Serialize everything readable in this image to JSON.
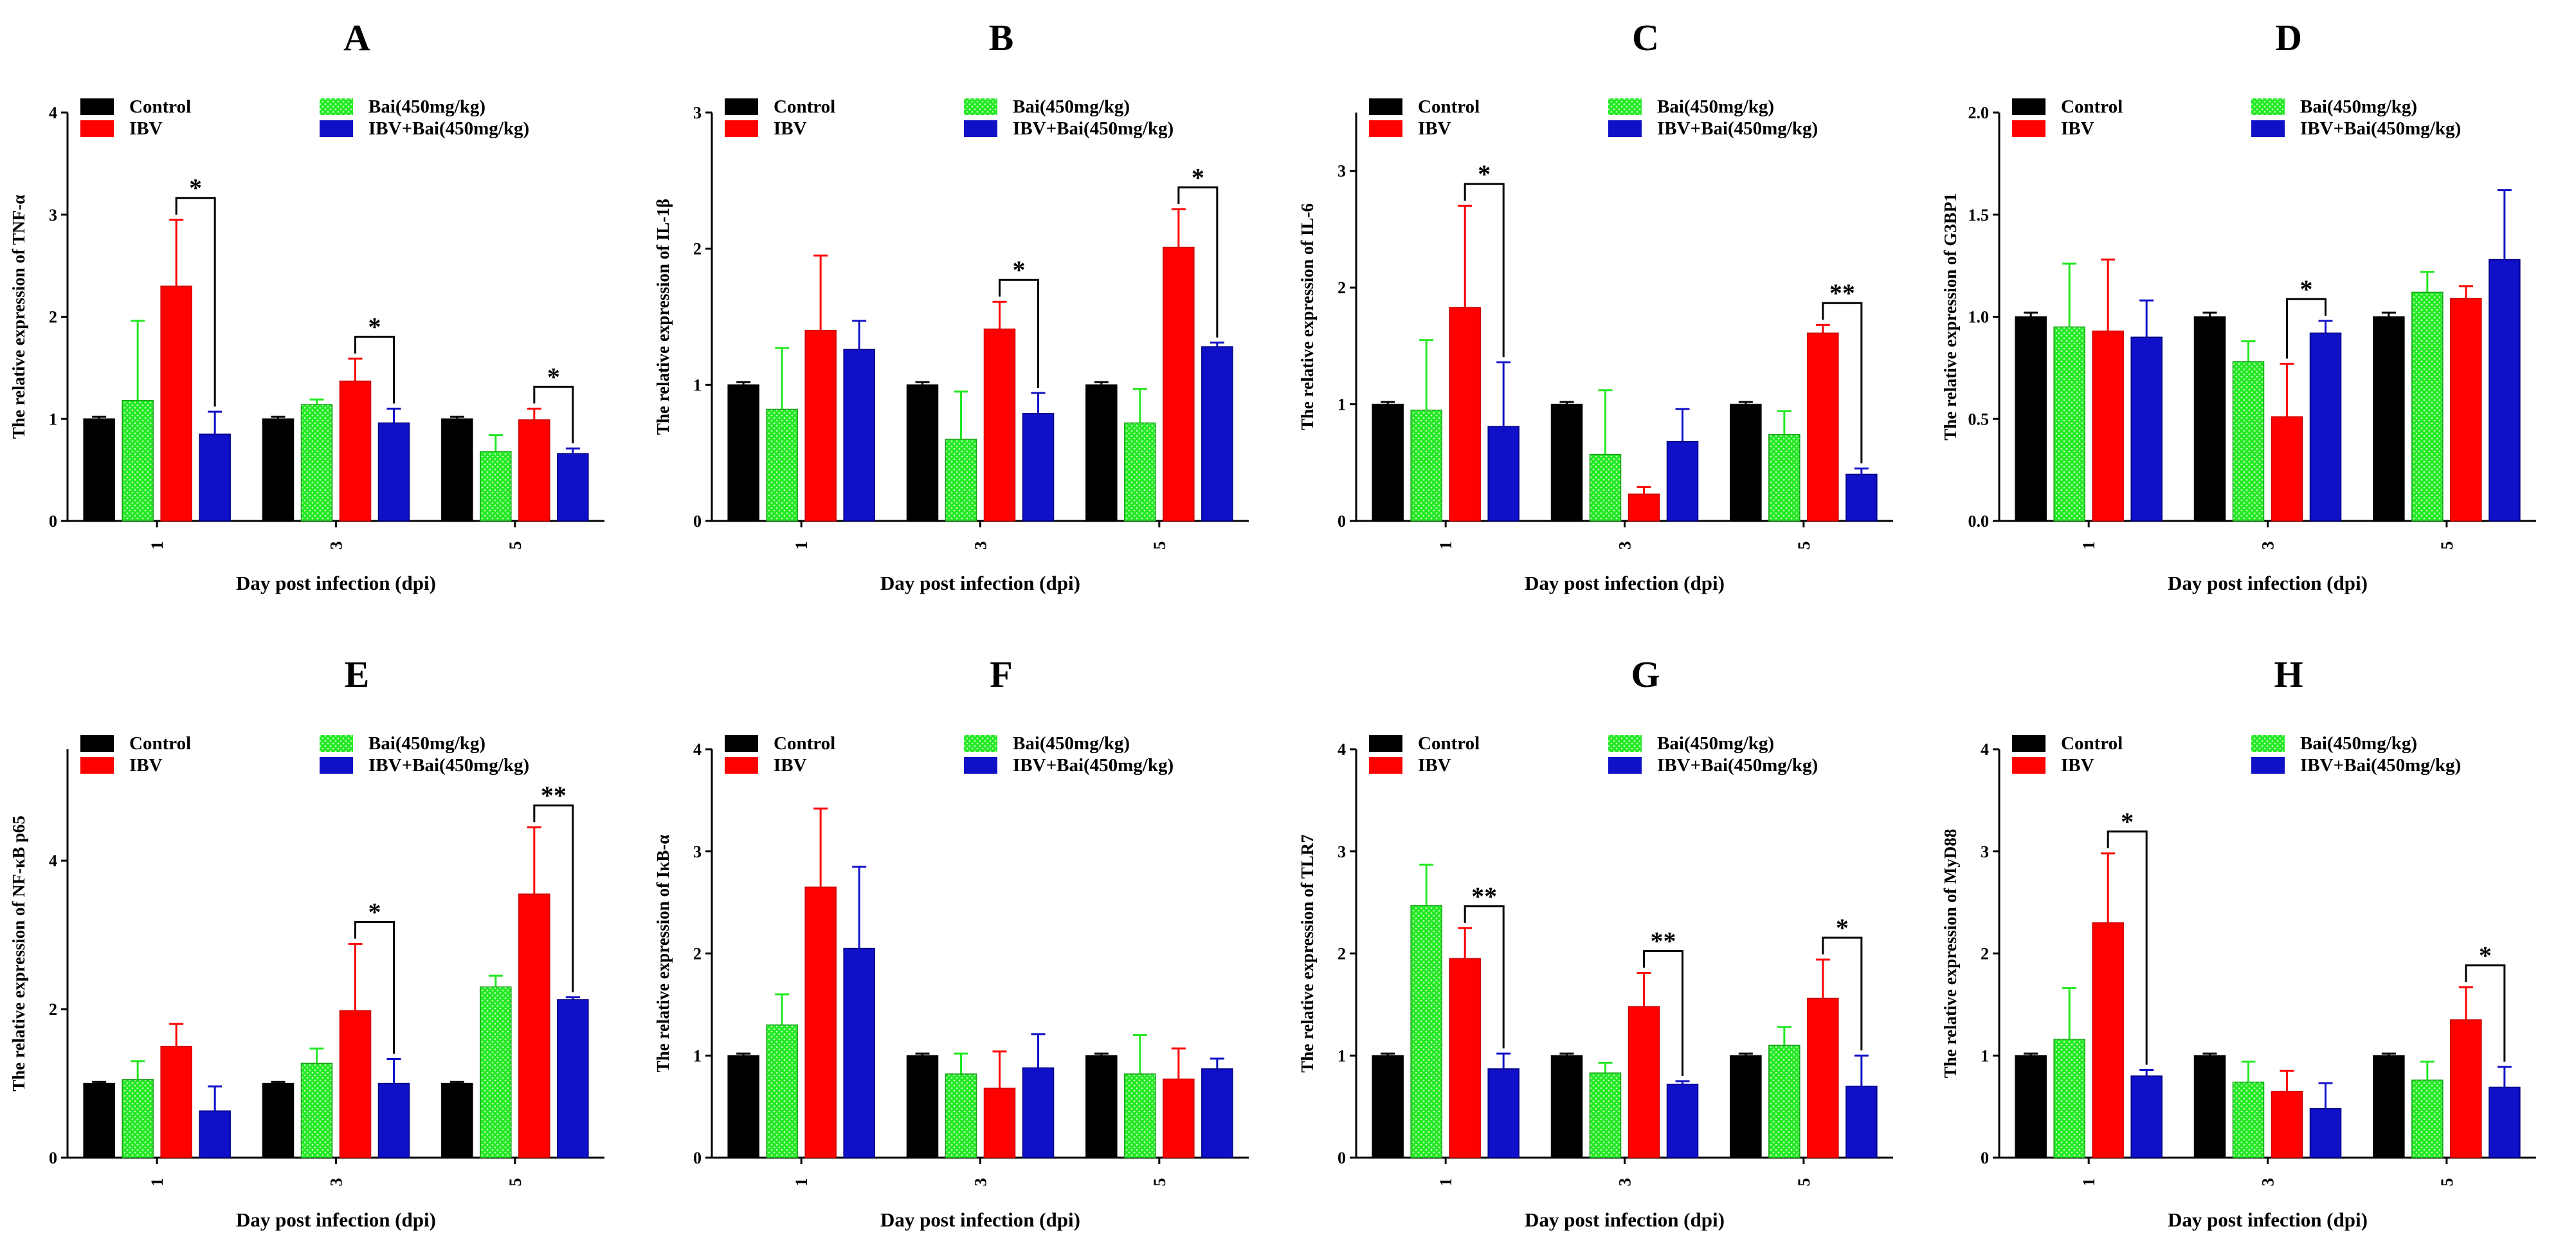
{
  "legend": [
    "Control",
    "IBV",
    "Bai(450mg/kg)",
    "IBV+Bai(450mg/kg)"
  ],
  "colors": {
    "Control": "#000000",
    "Bai(450mg/kg)": "#22e822",
    "IBV": "#ff0000",
    "IBV+Bai(450mg/kg)": "#1010c8"
  },
  "chart_data": [
    {
      "panel": "A",
      "type": "bar",
      "title": "A",
      "ylabel": "The relative expression of TNF-α",
      "xlabel": "Day post infection (dpi)",
      "categories": [
        "1",
        "3",
        "5"
      ],
      "ylim": [
        0,
        4
      ],
      "yticks": [
        0,
        1,
        2,
        3,
        4
      ],
      "series": [
        {
          "name": "Control",
          "values": [
            1.0,
            1.0,
            1.0
          ],
          "errors": [
            0.02,
            0.02,
            0.02
          ]
        },
        {
          "name": "Bai(450mg/kg)",
          "values": [
            1.18,
            1.14,
            0.68
          ],
          "errors": [
            0.78,
            0.05,
            0.16
          ]
        },
        {
          "name": "IBV",
          "values": [
            2.3,
            1.37,
            0.99
          ],
          "errors": [
            0.65,
            0.22,
            0.11
          ]
        },
        {
          "name": "IBV+Bai(450mg/kg)",
          "values": [
            0.85,
            0.96,
            0.66
          ],
          "errors": [
            0.22,
            0.14,
            0.05
          ]
        }
      ],
      "significance": [
        {
          "category": "1",
          "label": "*"
        },
        {
          "category": "3",
          "label": "*"
        },
        {
          "category": "5",
          "label": "*"
        }
      ]
    },
    {
      "panel": "B",
      "type": "bar",
      "title": "B",
      "ylabel": "The relative expression of IL-1β",
      "xlabel": "Day post infection (dpi)",
      "categories": [
        "1",
        "3",
        "5"
      ],
      "ylim": [
        0,
        3
      ],
      "yticks": [
        0,
        1,
        2,
        3
      ],
      "series": [
        {
          "name": "Control",
          "values": [
            1.0,
            1.0,
            1.0
          ],
          "errors": [
            0.02,
            0.02,
            0.02
          ]
        },
        {
          "name": "Bai(450mg/kg)",
          "values": [
            0.82,
            0.6,
            0.72
          ],
          "errors": [
            0.45,
            0.35,
            0.25
          ]
        },
        {
          "name": "IBV",
          "values": [
            1.4,
            1.41,
            2.01
          ],
          "errors": [
            0.55,
            0.2,
            0.28
          ]
        },
        {
          "name": "IBV+Bai(450mg/kg)",
          "values": [
            1.26,
            0.79,
            1.28
          ],
          "errors": [
            0.21,
            0.15,
            0.03
          ]
        }
      ],
      "significance": [
        {
          "category": "3",
          "label": "*"
        },
        {
          "category": "5",
          "label": "*"
        }
      ]
    },
    {
      "panel": "C",
      "type": "bar",
      "title": "C",
      "ylabel": "The relative expression of IL-6",
      "xlabel": "Day post infection (dpi)",
      "categories": [
        "1",
        "3",
        "5"
      ],
      "ylim": [
        0,
        3.5
      ],
      "yticks": [
        0,
        1,
        2,
        3
      ],
      "series": [
        {
          "name": "Control",
          "values": [
            1.0,
            1.0,
            1.0
          ],
          "errors": [
            0.02,
            0.02,
            0.02
          ]
        },
        {
          "name": "Bai(450mg/kg)",
          "values": [
            0.95,
            0.57,
            0.74
          ],
          "errors": [
            0.6,
            0.55,
            0.2
          ]
        },
        {
          "name": "IBV",
          "values": [
            1.83,
            0.23,
            1.61
          ],
          "errors": [
            0.87,
            0.06,
            0.07
          ]
        },
        {
          "name": "IBV+Bai(450mg/kg)",
          "values": [
            0.81,
            0.68,
            0.4
          ],
          "errors": [
            0.55,
            0.28,
            0.05
          ]
        }
      ],
      "significance": [
        {
          "category": "1",
          "label": "*"
        },
        {
          "category": "5",
          "label": "**"
        }
      ]
    },
    {
      "panel": "D",
      "type": "bar",
      "title": "D",
      "ylabel": "The relative expression of G3BP1",
      "xlabel": "Day post infection (dpi)",
      "categories": [
        "1",
        "3",
        "5"
      ],
      "ylim": [
        0,
        2
      ],
      "yticks": [
        0.0,
        0.5,
        1.0,
        1.5,
        2.0
      ],
      "series": [
        {
          "name": "Control",
          "values": [
            1.0,
            1.0,
            1.0
          ],
          "errors": [
            0.02,
            0.02,
            0.02
          ]
        },
        {
          "name": "Bai(450mg/kg)",
          "values": [
            0.95,
            0.78,
            1.12
          ],
          "errors": [
            0.31,
            0.1,
            0.1
          ]
        },
        {
          "name": "IBV",
          "values": [
            0.93,
            0.51,
            1.09
          ],
          "errors": [
            0.35,
            0.26,
            0.06
          ]
        },
        {
          "name": "IBV+Bai(450mg/kg)",
          "values": [
            0.9,
            0.92,
            1.28
          ],
          "errors": [
            0.18,
            0.06,
            0.34
          ]
        }
      ],
      "significance": [
        {
          "category": "3",
          "label": "*"
        }
      ]
    },
    {
      "panel": "E",
      "type": "bar",
      "title": "E",
      "ylabel": "The relative expression of NF-κB p65",
      "xlabel": "Day post infection (dpi)",
      "categories": [
        "1",
        "3",
        "5"
      ],
      "ylim": [
        0,
        5.5
      ],
      "yticks": [
        0,
        2,
        4
      ],
      "series": [
        {
          "name": "Control",
          "values": [
            1.0,
            1.0,
            1.0
          ],
          "errors": [
            0.02,
            0.02,
            0.02
          ]
        },
        {
          "name": "Bai(450mg/kg)",
          "values": [
            1.05,
            1.27,
            2.3
          ],
          "errors": [
            0.25,
            0.2,
            0.15
          ]
        },
        {
          "name": "IBV",
          "values": [
            1.5,
            1.98,
            3.55
          ],
          "errors": [
            0.3,
            0.9,
            0.9
          ]
        },
        {
          "name": "IBV+Bai(450mg/kg)",
          "values": [
            0.63,
            1.0,
            2.13
          ],
          "errors": [
            0.33,
            0.33,
            0.03
          ]
        }
      ],
      "significance": [
        {
          "category": "3",
          "label": "*"
        },
        {
          "category": "5",
          "label": "**"
        }
      ]
    },
    {
      "panel": "F",
      "type": "bar",
      "title": "F",
      "ylabel": "The relative expression of IκB-α",
      "xlabel": "Day post infection (dpi)",
      "categories": [
        "1",
        "3",
        "5"
      ],
      "ylim": [
        0,
        4
      ],
      "yticks": [
        0,
        1,
        2,
        3,
        4
      ],
      "series": [
        {
          "name": "Control",
          "values": [
            1.0,
            1.0,
            1.0
          ],
          "errors": [
            0.02,
            0.02,
            0.02
          ]
        },
        {
          "name": "Bai(450mg/kg)",
          "values": [
            1.3,
            0.82,
            0.82
          ],
          "errors": [
            0.3,
            0.2,
            0.38
          ]
        },
        {
          "name": "IBV",
          "values": [
            2.65,
            0.68,
            0.77
          ],
          "errors": [
            0.77,
            0.36,
            0.3
          ]
        },
        {
          "name": "IBV+Bai(450mg/kg)",
          "values": [
            2.05,
            0.88,
            0.87
          ],
          "errors": [
            0.8,
            0.33,
            0.1
          ]
        }
      ],
      "significance": []
    },
    {
      "panel": "G",
      "type": "bar",
      "title": "G",
      "ylabel": "The relative expression of TLR7",
      "xlabel": "Day post infection (dpi)",
      "categories": [
        "1",
        "3",
        "5"
      ],
      "ylim": [
        0,
        4
      ],
      "yticks": [
        0,
        1,
        2,
        3,
        4
      ],
      "series": [
        {
          "name": "Control",
          "values": [
            1.0,
            1.0,
            1.0
          ],
          "errors": [
            0.02,
            0.02,
            0.02
          ]
        },
        {
          "name": "Bai(450mg/kg)",
          "values": [
            2.47,
            0.83,
            1.1
          ],
          "errors": [
            0.4,
            0.1,
            0.18
          ]
        },
        {
          "name": "IBV",
          "values": [
            1.95,
            1.48,
            1.56
          ],
          "errors": [
            0.3,
            0.33,
            0.38
          ]
        },
        {
          "name": "IBV+Bai(450mg/kg)",
          "values": [
            0.87,
            0.72,
            0.7
          ],
          "errors": [
            0.15,
            0.03,
            0.3
          ]
        }
      ],
      "significance": [
        {
          "category": "1",
          "label": "**"
        },
        {
          "category": "3",
          "label": "**"
        },
        {
          "category": "5",
          "label": "*"
        }
      ]
    },
    {
      "panel": "H",
      "type": "bar",
      "title": "H",
      "ylabel": "The relative expression of MyD88",
      "xlabel": "Day post infection (dpi)",
      "categories": [
        "1",
        "3",
        "5"
      ],
      "ylim": [
        0,
        4
      ],
      "yticks": [
        0,
        1,
        2,
        3,
        4
      ],
      "series": [
        {
          "name": "Control",
          "values": [
            1.0,
            1.0,
            1.0
          ],
          "errors": [
            0.02,
            0.02,
            0.02
          ]
        },
        {
          "name": "Bai(450mg/kg)",
          "values": [
            1.16,
            0.74,
            0.76
          ],
          "errors": [
            0.5,
            0.2,
            0.18
          ]
        },
        {
          "name": "IBV",
          "values": [
            2.3,
            0.65,
            1.35
          ],
          "errors": [
            0.68,
            0.2,
            0.32
          ]
        },
        {
          "name": "IBV+Bai(450mg/kg)",
          "values": [
            0.8,
            0.48,
            0.69
          ],
          "errors": [
            0.06,
            0.25,
            0.2
          ]
        }
      ],
      "significance": [
        {
          "category": "1",
          "label": "*"
        },
        {
          "category": "5",
          "label": "*"
        }
      ]
    }
  ]
}
